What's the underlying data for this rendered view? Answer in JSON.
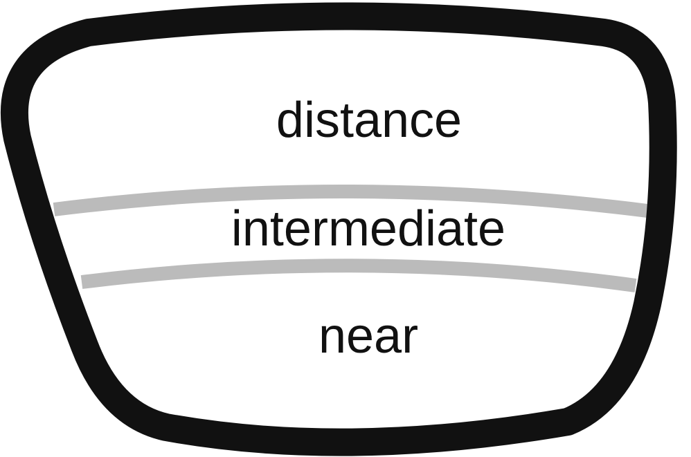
{
  "zones": [
    {
      "id": "distance",
      "label": "distance"
    },
    {
      "id": "intermediate",
      "label": "intermediate"
    },
    {
      "id": "near",
      "label": "near"
    }
  ],
  "colors": {
    "frame": "#111111",
    "divider": "#bbbbbb",
    "text": "#111111",
    "background": "#ffffff"
  }
}
